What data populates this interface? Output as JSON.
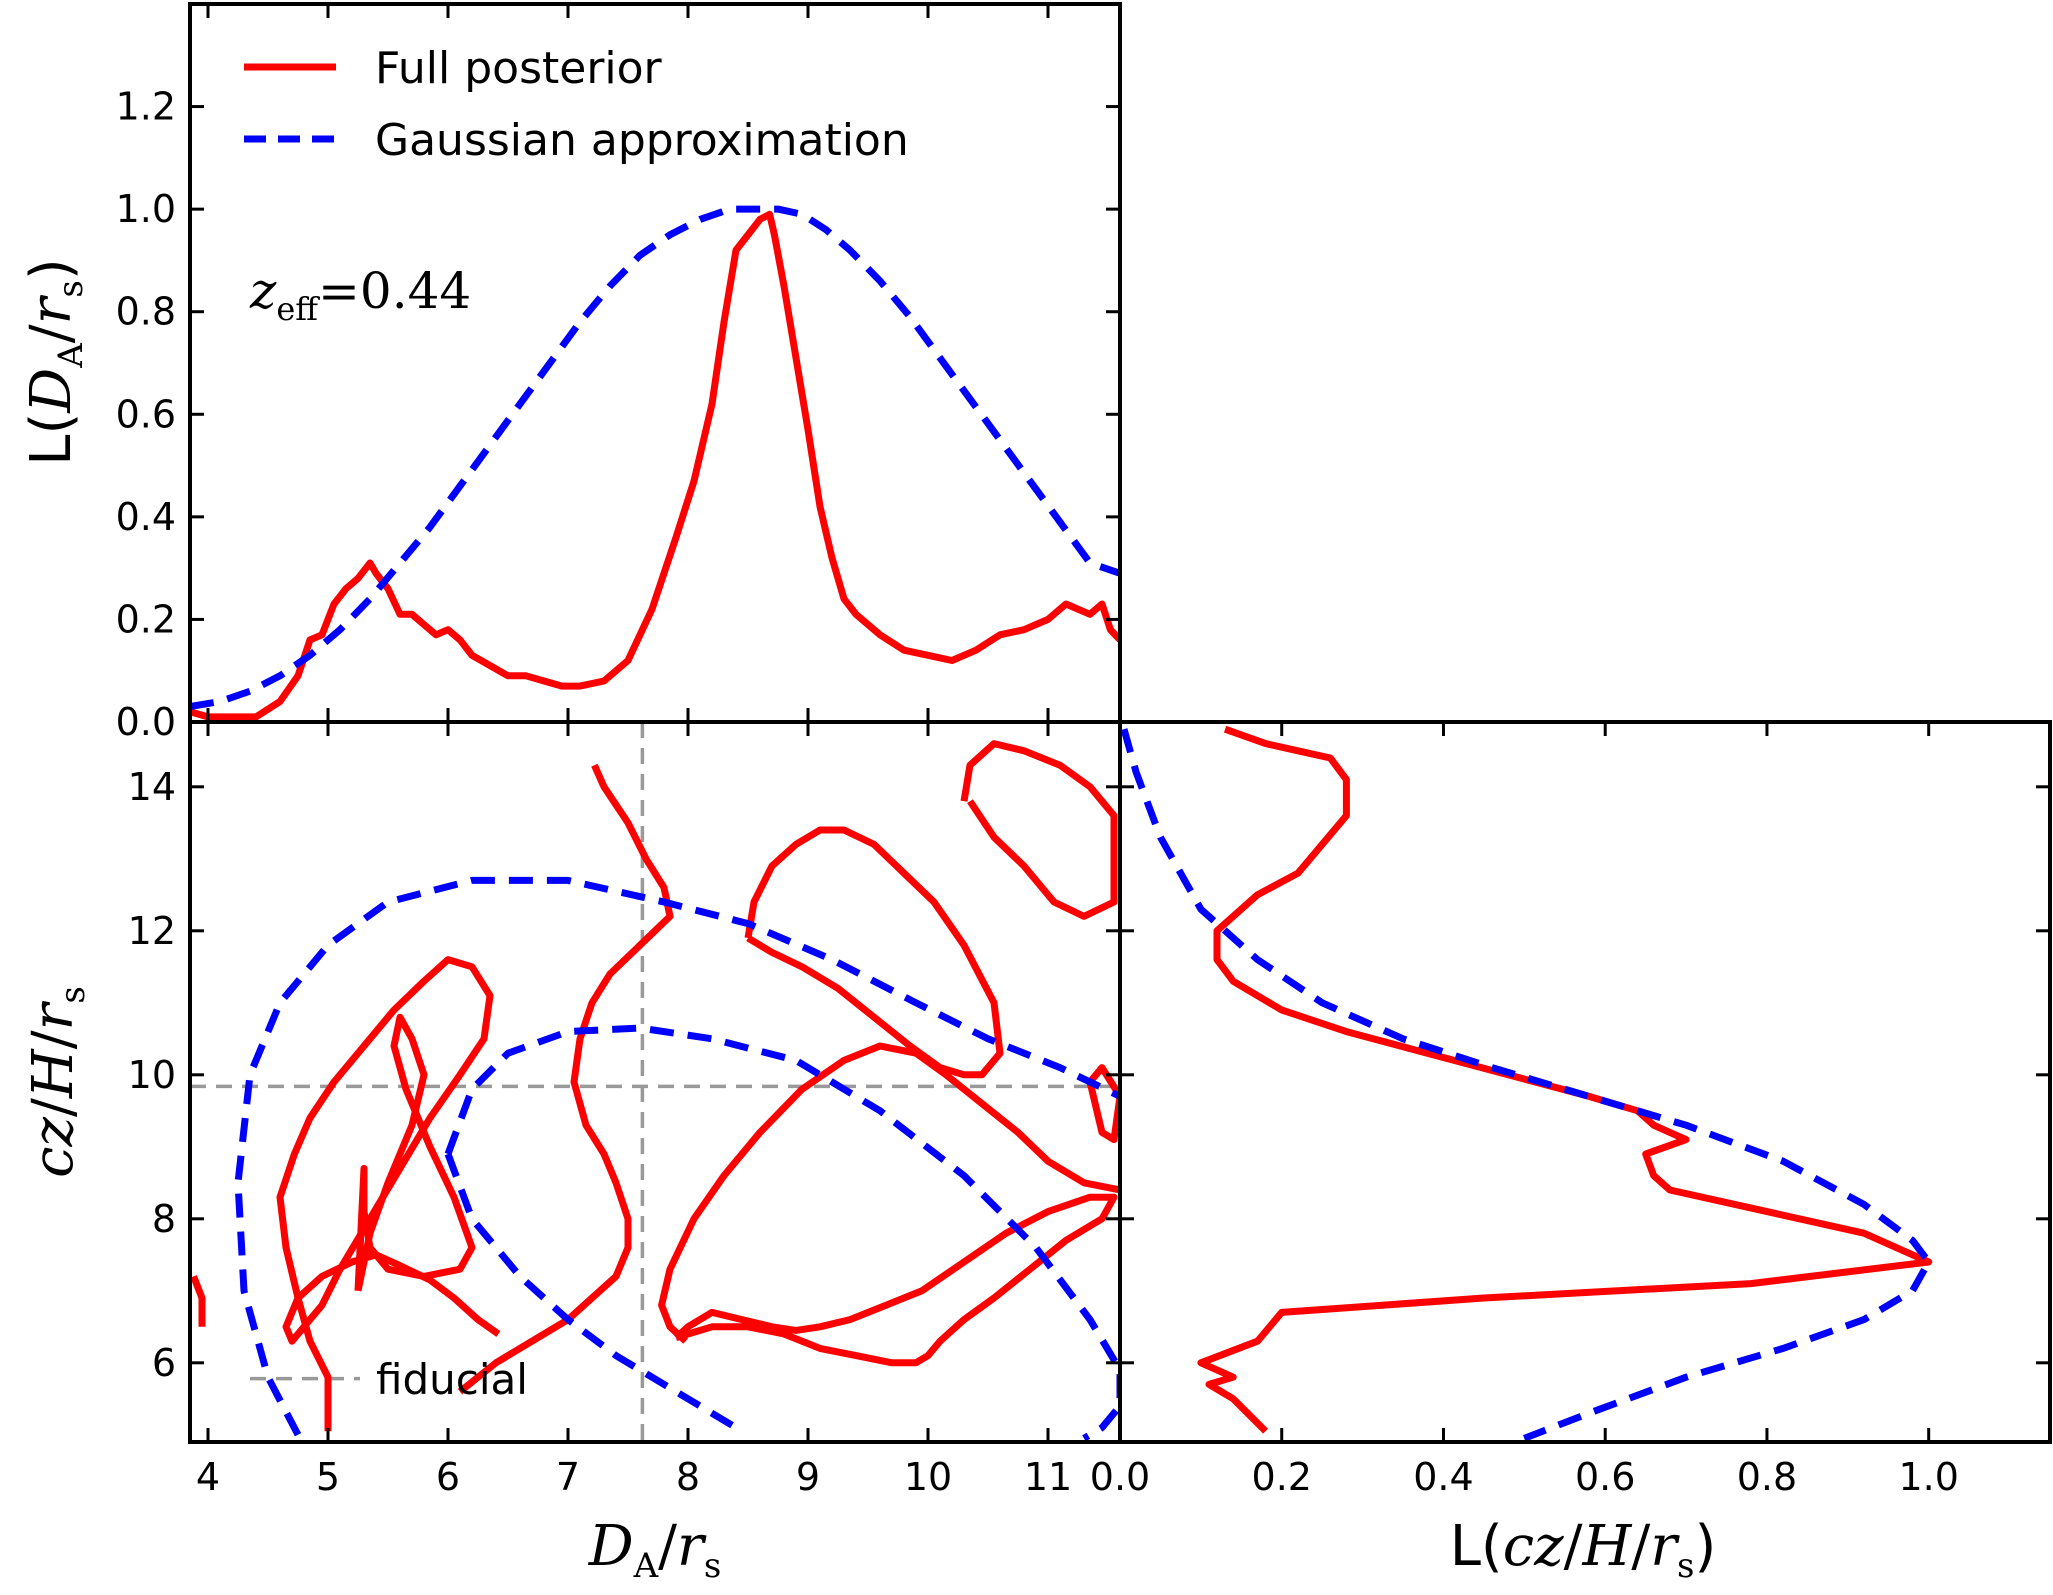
{
  "colors": {
    "full": "#ff0000",
    "gauss": "#0000ff",
    "fiducial": "#999999"
  },
  "legend": {
    "placement": "upper-left",
    "entries": [
      {
        "label": "Full posterior",
        "style": "solid",
        "color": "#ff0000"
      },
      {
        "label": "Gaussian approximation",
        "style": "dashed",
        "color": "#0000ff"
      }
    ]
  },
  "annotation": {
    "z_symbol": "z",
    "z_sub": "eff",
    "z_eq": "=0.44"
  },
  "fiducial_label": "fiducial",
  "chart_data": [
    {
      "type": "line",
      "panel": "top",
      "xlim": [
        3.85,
        11.6
      ],
      "ylim": [
        0,
        1.4
      ],
      "xticks": [
        4,
        5,
        6,
        7,
        8,
        9,
        10,
        11
      ],
      "yticks": [
        0.0,
        0.2,
        0.4,
        0.6,
        0.8,
        1.0,
        1.2
      ],
      "ytick_labels": [
        "0.0",
        "0.2",
        "0.4",
        "0.6",
        "0.8",
        "1.0",
        "1.2"
      ],
      "ylabel": {
        "prefix": "L(",
        "var": "D",
        "sub": "A",
        "slash": "/",
        "var2": "r",
        "sub2": "s",
        "suffix": ")"
      },
      "series": [
        {
          "name": "Full posterior",
          "x": [
            3.85,
            4.0,
            4.2,
            4.4,
            4.6,
            4.75,
            4.85,
            4.95,
            5.05,
            5.15,
            5.25,
            5.35,
            5.4,
            5.5,
            5.6,
            5.7,
            5.8,
            5.9,
            6.0,
            6.1,
            6.2,
            6.35,
            6.5,
            6.65,
            6.8,
            6.95,
            7.1,
            7.3,
            7.5,
            7.7,
            7.9,
            8.05,
            8.2,
            8.3,
            8.4,
            8.5,
            8.6,
            8.68,
            8.72,
            8.8,
            8.9,
            9.0,
            9.1,
            9.2,
            9.3,
            9.4,
            9.6,
            9.8,
            10.0,
            10.2,
            10.4,
            10.6,
            10.8,
            11.0,
            11.15,
            11.25,
            11.35,
            11.45,
            11.52,
            11.6
          ],
          "values": [
            0.02,
            0.01,
            0.01,
            0.01,
            0.04,
            0.09,
            0.16,
            0.17,
            0.23,
            0.26,
            0.28,
            0.31,
            0.29,
            0.26,
            0.21,
            0.21,
            0.19,
            0.17,
            0.18,
            0.16,
            0.13,
            0.11,
            0.09,
            0.09,
            0.08,
            0.07,
            0.07,
            0.08,
            0.12,
            0.22,
            0.36,
            0.47,
            0.62,
            0.78,
            0.92,
            0.95,
            0.98,
            0.99,
            0.95,
            0.85,
            0.71,
            0.57,
            0.42,
            0.32,
            0.24,
            0.21,
            0.17,
            0.14,
            0.13,
            0.12,
            0.14,
            0.17,
            0.18,
            0.2,
            0.23,
            0.22,
            0.21,
            0.23,
            0.18,
            0.16
          ],
          "color": "#ff0000",
          "style": "solid"
        },
        {
          "name": "Gaussian approximation",
          "x": [
            3.85,
            4.1,
            4.35,
            4.6,
            4.85,
            5.1,
            5.35,
            5.6,
            5.85,
            6.1,
            6.35,
            6.6,
            6.85,
            7.1,
            7.35,
            7.6,
            7.85,
            8.1,
            8.35,
            8.55,
            8.75,
            8.95,
            9.15,
            9.35,
            9.6,
            9.85,
            10.1,
            10.35,
            10.6,
            10.85,
            11.1,
            11.35,
            11.6
          ],
          "values": [
            0.03,
            0.04,
            0.06,
            0.09,
            0.13,
            0.18,
            0.24,
            0.31,
            0.38,
            0.46,
            0.54,
            0.62,
            0.7,
            0.78,
            0.85,
            0.91,
            0.95,
            0.98,
            1.0,
            1.0,
            1.0,
            0.99,
            0.96,
            0.92,
            0.86,
            0.79,
            0.71,
            0.63,
            0.55,
            0.47,
            0.39,
            0.31,
            0.29
          ],
          "color": "#0000ff",
          "style": "dashed"
        }
      ]
    },
    {
      "type": "contour",
      "panel": "bottom-left",
      "xlim": [
        3.85,
        11.6
      ],
      "ylim": [
        4.9,
        14.9
      ],
      "xticks": [
        4,
        5,
        6,
        7,
        8,
        9,
        10,
        11
      ],
      "yticks": [
        6,
        8,
        10,
        12,
        14
      ],
      "xlabel": {
        "var": "D",
        "sub": "A",
        "slash": "/",
        "var2": "r",
        "sub2": "s"
      },
      "ylabel": {
        "var": "cz",
        "slash": "/",
        "var2": "H",
        "slash2": "/",
        "var3": "r",
        "sub3": "s"
      },
      "fiducial": {
        "x": 7.62,
        "y_top": 9.84,
        "y_bottom": 5.78
      },
      "series": [
        {
          "name": "",
          "style": "solid",
          "color": "#ff0000",
          "x": [
            5.0,
            5.0,
            4.85,
            4.75,
            4.65,
            4.6,
            4.72,
            4.85,
            5.05,
            5.3,
            5.55,
            5.8,
            6.0,
            6.2,
            6.35,
            6.3,
            6.1,
            5.85,
            5.6,
            5.35,
            5.1,
            4.95,
            4.8,
            4.7,
            4.65,
            4.75,
            4.95,
            5.2,
            5.4,
            5.6,
            5.85,
            6.05,
            6.25,
            6.42
          ],
          "y": [
            5.05,
            5.8,
            6.3,
            6.9,
            7.6,
            8.3,
            8.9,
            9.4,
            9.9,
            10.4,
            10.9,
            11.3,
            11.6,
            11.5,
            11.1,
            10.5,
            10.0,
            9.4,
            8.7,
            8.0,
            7.3,
            6.8,
            6.5,
            6.3,
            6.5,
            6.9,
            7.2,
            7.4,
            7.5,
            7.35,
            7.15,
            6.9,
            6.6,
            6.4
          ]
        },
        {
          "name": "",
          "style": "solid",
          "color": "#ff0000",
          "x": [
            5.25,
            5.35,
            5.5,
            5.7,
            5.8,
            5.7,
            5.6,
            5.55,
            5.65,
            5.85,
            6.05,
            6.2,
            6.1,
            5.8,
            5.5,
            5.35,
            5.3,
            5.3,
            5.25
          ],
          "y": [
            7.0,
            7.8,
            8.5,
            9.3,
            10.0,
            10.5,
            10.8,
            10.4,
            9.8,
            9.0,
            8.3,
            7.6,
            7.3,
            7.2,
            7.3,
            7.6,
            8.1,
            8.7,
            7.0
          ]
        },
        {
          "name": "",
          "style": "solid",
          "color": "#ff0000",
          "x": [
            7.22,
            7.3,
            7.5,
            7.65,
            7.8,
            7.85,
            7.6,
            7.35,
            7.2,
            7.1,
            7.05,
            7.15,
            7.3,
            7.4,
            7.5,
            7.5,
            7.4,
            7.2,
            7.0,
            6.8,
            6.6,
            6.4,
            6.25,
            6.1
          ],
          "y": [
            14.3,
            14.0,
            13.5,
            13.0,
            12.6,
            12.2,
            11.8,
            11.4,
            11.0,
            10.5,
            9.9,
            9.3,
            8.9,
            8.5,
            8.0,
            7.6,
            7.2,
            6.9,
            6.6,
            6.4,
            6.2,
            6.0,
            5.8,
            5.6
          ]
        },
        {
          "name": "",
          "style": "solid",
          "color": "#ff0000",
          "x": [
            7.98,
            7.85,
            7.78,
            7.85,
            8.05,
            8.3,
            8.6,
            8.95,
            9.3,
            9.6,
            9.9,
            10.15,
            10.45,
            10.75,
            11.0,
            11.3,
            11.6
          ],
          "y": [
            6.3,
            6.5,
            6.8,
            7.3,
            8.0,
            8.6,
            9.2,
            9.8,
            10.2,
            10.4,
            10.3,
            10.0,
            9.6,
            9.2,
            8.8,
            8.5,
            8.4
          ]
        },
        {
          "name": "",
          "style": "solid",
          "color": "#ff0000",
          "x": [
            7.9,
            8.2,
            8.5,
            8.8,
            9.1,
            9.4,
            9.7,
            9.9,
            10.0,
            10.1,
            10.3,
            10.55,
            10.85,
            11.15,
            11.45,
            11.55,
            11.35,
            11.0,
            10.65,
            10.3,
            9.95,
            9.65,
            9.35,
            9.1,
            8.9,
            8.7,
            8.45,
            8.2,
            8.0,
            7.9
          ],
          "y": [
            6.35,
            6.5,
            6.5,
            6.4,
            6.2,
            6.1,
            6.0,
            6.0,
            6.1,
            6.3,
            6.6,
            6.9,
            7.3,
            7.7,
            8.0,
            8.3,
            8.3,
            8.1,
            7.8,
            7.4,
            7.0,
            6.8,
            6.6,
            6.5,
            6.45,
            6.5,
            6.6,
            6.7,
            6.5,
            6.35
          ]
        },
        {
          "name": "",
          "style": "solid",
          "color": "#ff0000",
          "x": [
            8.5,
            8.55,
            8.7,
            8.9,
            9.1,
            9.3,
            9.55,
            9.8,
            10.05,
            10.3,
            10.55,
            10.6,
            10.45,
            10.3,
            10.1,
            9.85,
            9.55,
            9.25,
            8.95,
            8.7,
            8.5
          ],
          "y": [
            11.9,
            12.4,
            12.9,
            13.2,
            13.4,
            13.4,
            13.2,
            12.8,
            12.4,
            11.8,
            11.0,
            10.3,
            10.0,
            10.0,
            10.1,
            10.4,
            10.8,
            11.2,
            11.5,
            11.7,
            11.9
          ]
        },
        {
          "name": "",
          "style": "solid",
          "color": "#ff0000",
          "x": [
            10.3,
            10.35,
            10.55,
            10.8,
            11.1,
            11.35,
            11.55,
            11.55,
            11.3,
            11.05,
            10.8,
            10.55,
            10.35
          ],
          "y": [
            13.8,
            14.3,
            14.6,
            14.5,
            14.3,
            14.0,
            13.6,
            12.4,
            12.2,
            12.4,
            12.9,
            13.3,
            13.8
          ]
        },
        {
          "name": "",
          "style": "solid",
          "color": "#ff0000",
          "x": [
            11.35,
            11.45,
            11.6,
            11.55,
            11.45,
            11.35
          ],
          "y": [
            9.9,
            10.1,
            9.7,
            9.1,
            9.2,
            9.9
          ]
        },
        {
          "name": "",
          "style": "solid",
          "color": "#ff0000",
          "x": [
            3.88,
            3.95,
            3.95
          ],
          "y": [
            7.2,
            6.9,
            6.5
          ]
        },
        {
          "name": "",
          "style": "dashed",
          "color": "#0000ff",
          "x": [
            4.75,
            4.5,
            4.3,
            4.25,
            4.35,
            4.6,
            5.0,
            5.5,
            6.2,
            7.0,
            7.8,
            8.5,
            9.2,
            9.9,
            10.5,
            11.1,
            11.6
          ],
          "y": [
            5.0,
            5.8,
            7.0,
            8.5,
            10.0,
            11.0,
            11.8,
            12.4,
            12.7,
            12.7,
            12.4,
            12.1,
            11.6,
            11.0,
            10.5,
            10.1,
            9.7
          ]
        },
        {
          "name": "",
          "style": "dashed",
          "color": "#0000ff",
          "x": [
            6.0,
            6.2,
            6.5,
            7.0,
            7.6,
            8.2,
            8.9,
            9.6,
            10.3,
            10.9,
            11.35,
            11.6,
            11.6,
            11.45,
            11.3
          ],
          "y": [
            8.9,
            9.8,
            10.3,
            10.6,
            10.65,
            10.5,
            10.2,
            9.5,
            8.6,
            7.6,
            6.6,
            5.9,
            5.4,
            5.1,
            4.95
          ]
        },
        {
          "name": "",
          "style": "dashed",
          "color": "#0000ff",
          "x": [
            6.0,
            6.2,
            6.6,
            7.0,
            7.4,
            7.8,
            8.2,
            8.45
          ],
          "y": [
            8.9,
            8.0,
            7.2,
            6.6,
            6.1,
            5.7,
            5.3,
            5.05
          ]
        }
      ]
    },
    {
      "type": "line",
      "panel": "right",
      "orientation": "horizontal",
      "xlim": [
        0.0,
        1.15
      ],
      "ylim": [
        4.9,
        14.9
      ],
      "xticks": [
        0.0,
        0.2,
        0.4,
        0.6,
        0.8,
        1.0
      ],
      "xtick_labels": [
        "0.0",
        "0.2",
        "0.4",
        "0.6",
        "0.8",
        "1.0"
      ],
      "xlabel": {
        "prefix": "L(",
        "var": "cz",
        "slash": "/",
        "var2": "H",
        "slash2": "/",
        "var3": "r",
        "sub3": "s",
        "suffix": ")"
      },
      "series": [
        {
          "name": "Full posterior",
          "style": "solid",
          "color": "#ff0000",
          "x": [
            0.13,
            0.18,
            0.22,
            0.26,
            0.28,
            0.28,
            0.25,
            0.22,
            0.17,
            0.14,
            0.12,
            0.12,
            0.14,
            0.2,
            0.28,
            0.38,
            0.48,
            0.58,
            0.64,
            0.66,
            0.68,
            0.7,
            0.65,
            0.66,
            0.68,
            0.8,
            0.92,
            1.0,
            0.78,
            0.45,
            0.2,
            0.17,
            0.1,
            0.14,
            0.11,
            0.14,
            0.18
          ],
          "y": [
            14.8,
            14.6,
            14.5,
            14.4,
            14.1,
            13.6,
            13.2,
            12.8,
            12.5,
            12.2,
            12.0,
            11.6,
            11.3,
            10.9,
            10.6,
            10.3,
            10.0,
            9.7,
            9.5,
            9.3,
            9.2,
            9.1,
            8.9,
            8.6,
            8.4,
            8.1,
            7.8,
            7.4,
            7.1,
            6.9,
            6.7,
            6.3,
            6.0,
            5.8,
            5.7,
            5.5,
            5.05
          ]
        },
        {
          "name": "Gaussian approximation",
          "style": "dashed",
          "color": "#0000ff",
          "x": [
            0.005,
            0.02,
            0.05,
            0.1,
            0.17,
            0.25,
            0.35,
            0.46,
            0.58,
            0.7,
            0.82,
            0.92,
            0.98,
            1.0,
            0.98,
            0.92,
            0.82,
            0.7,
            0.58,
            0.5
          ],
          "y": [
            14.8,
            14.2,
            13.3,
            12.3,
            11.6,
            11.0,
            10.5,
            10.1,
            9.7,
            9.3,
            8.8,
            8.2,
            7.7,
            7.4,
            7.0,
            6.6,
            6.2,
            5.8,
            5.3,
            4.95
          ]
        }
      ]
    }
  ]
}
